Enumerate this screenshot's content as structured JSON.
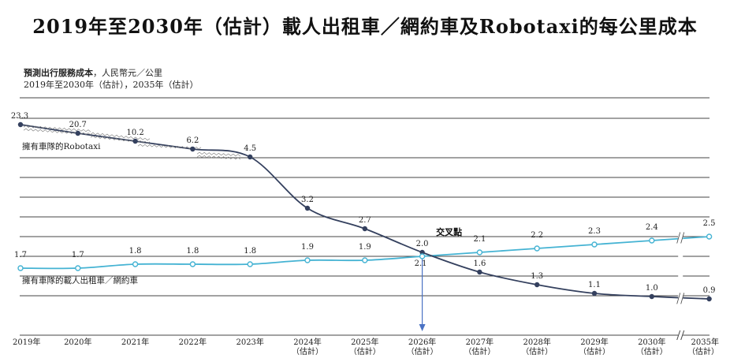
{
  "title": "2019年至2030年（估計）載人出租車／網約車及Robotaxi的每公里成本",
  "subtitle": {
    "bold": "預測出行服務成本",
    "rest": "，人民幣元／公里",
    "line2": "2019年至2030年（估計），2035年（估計）"
  },
  "annotation": "交叉點",
  "colors": {
    "robotaxi": "#34405e",
    "taxi": "#45b3d3",
    "grid": "#444444",
    "arrow": "#4a72c4"
  },
  "chart_data": {
    "type": "line",
    "x": [
      "2019年",
      "2020年",
      "2021年",
      "2022年",
      "2023年",
      "2024年\n（估計）",
      "2025年\n（估計）",
      "2026年\n（估計）",
      "2027年\n（估計）",
      "2028年\n（估計）",
      "2029年\n（估計）",
      "2030年\n（估計）",
      "2035年\n（估計）"
    ],
    "series": [
      {
        "name": "擁有車隊的Robotaxi",
        "values": [
          23.3,
          20.7,
          10.2,
          6.2,
          4.5,
          3.2,
          2.7,
          2.1,
          1.6,
          1.3,
          1.1,
          1.0,
          0.9
        ]
      },
      {
        "name": "擁有車隊的載人出租車／網約車",
        "values": [
          1.7,
          1.7,
          1.8,
          1.8,
          1.8,
          1.9,
          1.9,
          2.0,
          2.1,
          2.2,
          2.3,
          2.4,
          2.5
        ]
      }
    ],
    "axis_break": "between 2030年 and 2035年",
    "crossover": "2026年"
  }
}
